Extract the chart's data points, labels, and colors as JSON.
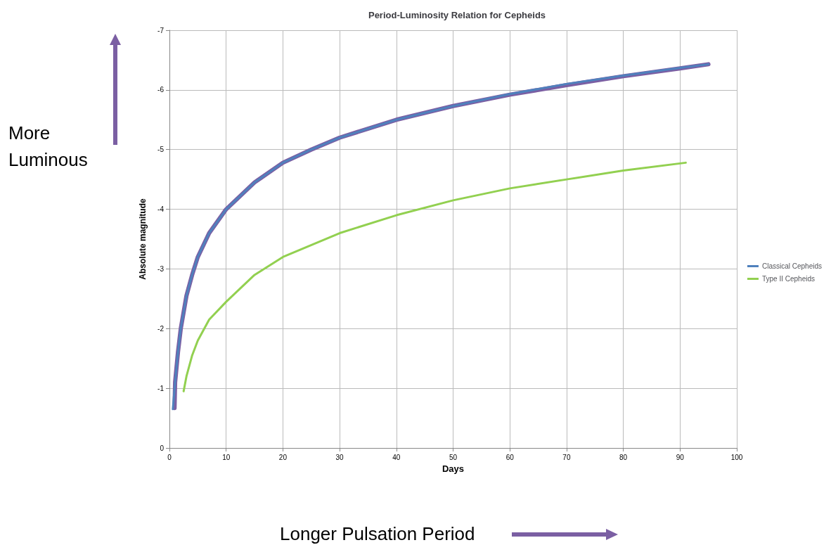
{
  "chart_data": {
    "type": "line",
    "title": "Period-Luminosity Relation for Cepheids",
    "xlabel": "Days",
    "ylabel": "Absolute magnitude",
    "xlim": [
      0,
      100
    ],
    "xticks": [
      0,
      10,
      20,
      30,
      40,
      50,
      60,
      70,
      80,
      90,
      100
    ],
    "ylim": [
      0,
      -7
    ],
    "yticks": [
      0,
      -1,
      -2,
      -3,
      -4,
      -5,
      -6,
      -7
    ],
    "grid": true,
    "legend": "right",
    "marker": "none",
    "line_style": "solid",
    "annotations": [
      "More Luminous",
      "Longer Pulsation Period"
    ],
    "series": [
      {
        "name": "Classical Cepheids",
        "color": "#4f81bd",
        "x": [
          0.6,
          1,
          1.5,
          2,
          3,
          4,
          5,
          7,
          10,
          15,
          20,
          25,
          30,
          40,
          50,
          60,
          70,
          80,
          90,
          95
        ],
        "values": [
          -0.65,
          -1.1,
          -1.6,
          -2.0,
          -2.55,
          -2.9,
          -3.2,
          -3.6,
          -4.0,
          -4.45,
          -4.78,
          -5.0,
          -5.2,
          -5.5,
          -5.73,
          -5.93,
          -6.1,
          -6.24,
          -6.37,
          -6.43
        ]
      },
      {
        "color": "#7b5fa3",
        "x": [
          0.9,
          1,
          1.5,
          2,
          3,
          4,
          5,
          7,
          10,
          15,
          20,
          25,
          30,
          40,
          50,
          60,
          70,
          80,
          90,
          95
        ],
        "values": [
          -0.67,
          -1.1,
          -1.6,
          -2.0,
          -2.55,
          -2.9,
          -3.2,
          -3.6,
          -4.0,
          -4.45,
          -4.78,
          -5.0,
          -5.2,
          -5.5,
          -5.73,
          -5.92,
          -6.08,
          -6.23,
          -6.36,
          -6.43
        ]
      },
      {
        "name": "Type II Cepheids",
        "color": "#92d050",
        "x": [
          2.5,
          3,
          4,
          5,
          7,
          10,
          15,
          20,
          30,
          40,
          50,
          60,
          70,
          80,
          91
        ],
        "values": [
          -0.95,
          -1.2,
          -1.55,
          -1.8,
          -2.15,
          -2.45,
          -2.9,
          -3.2,
          -3.6,
          -3.9,
          -4.15,
          -4.35,
          -4.5,
          -4.65,
          -4.78
        ]
      }
    ]
  }
}
